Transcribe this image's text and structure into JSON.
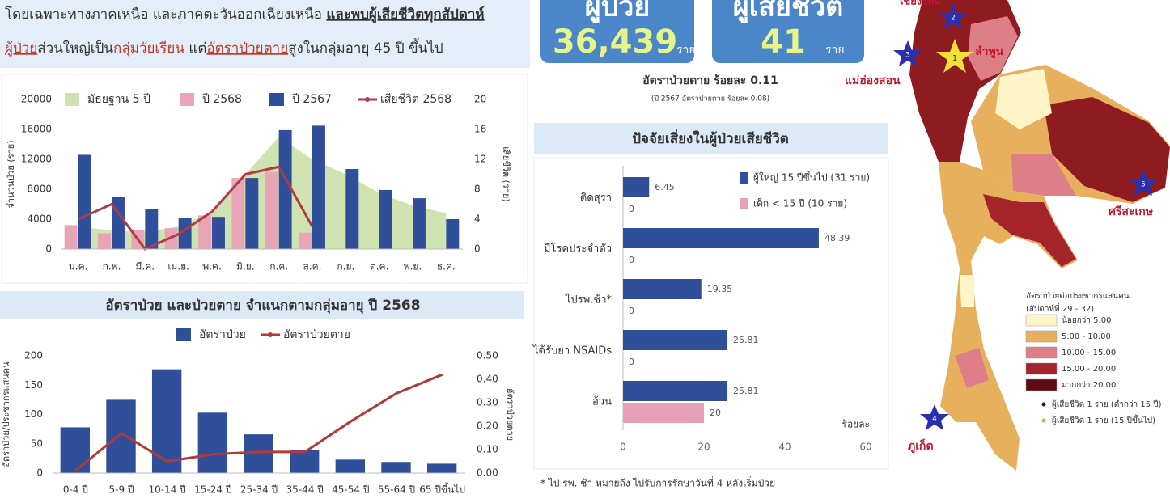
{
  "header": {
    "line1": [
      "โดยเฉพาะทางภาคเหนือ และภาคตะวันออกเฉียงเหนือ ",
      "และพบผู้เสียชีวิตทุกสัปดาห์"
    ],
    "line2": [
      "ผู้ป่วย",
      "ส่วนใหญ่เป็น",
      "กลุ่มวัยเรียน",
      " แต่",
      "อัตราป่วยตาย",
      "สูงในกลุ่มอายุ 45 ปี ขึ้นไป"
    ]
  },
  "stats": {
    "cases_label": "ผู้ป่วย",
    "cases": "36,439",
    "cases_unit": "ราย",
    "deaths_label": "ผู้เสียชีวิต",
    "deaths": "41",
    "deaths_unit": "ราย",
    "cfr": "อัตราป่วยตาย ร้อยละ 0.11",
    "cfr_prev": "(ปี 2567 อัตราป่วยตาย ร้อยละ 0.08)"
  },
  "footnote": "* ไป รพ. ช้า หมายถึง ไปรับการรักษาวันที่ 4 หลังเริ่มป่วย",
  "map": {
    "places": [
      "เชียงใหม่",
      "ลำพูน",
      "แม่ฮ่องสอน",
      "ศรีสะเกษ",
      "ภูเก็ต"
    ],
    "stars": [
      "1",
      "2",
      "3",
      "5",
      "4"
    ],
    "legend": {
      "title": "อัตราป่วยต่อประชากรแสนคน",
      "subtitle": "(สัปดาห์ที่ 29 - 32)",
      "items": [
        {
          "label": "น้อยกว่า 5.00",
          "color": "#fdf5c8"
        },
        {
          "label": "5.00 - 10.00",
          "color": "#e6b05c"
        },
        {
          "label": "10.00 - 15.00",
          "color": "#de7f88"
        },
        {
          "label": "15.00 - 20.00",
          "color": "#a3242b"
        },
        {
          "label": "มากกว่า 20.00",
          "color": "#5e0c12"
        }
      ],
      "markers": [
        {
          "label": "ผู้เสียชีวิต 1 ราย (ต่ำกว่า 15 ปี)",
          "color": "#111111"
        },
        {
          "label": "ผู้เสียชีวิต 1 ราย (15 ปีขึ้นไป)",
          "color": "#8fd14f"
        }
      ]
    }
  },
  "chart_data": [
    {
      "type": "bar",
      "categories": [
        "ม.ค.",
        "ก.พ.",
        "มี.ค.",
        "เม.ย.",
        "พ.ค.",
        "มิ.ย.",
        "ก.ค.",
        "ส.ค.",
        "ก.ย.",
        "ต.ค.",
        "พ.ย.",
        "ธ.ค."
      ],
      "series": [
        {
          "name": "มัธยฐาน 5 ปี",
          "type": "area",
          "color": "#cfe3b0",
          "values": [
            3000,
            2500,
            2300,
            3000,
            5000,
            10000,
            15000,
            12000,
            10000,
            7500,
            5800,
            4800
          ]
        },
        {
          "name": "ปี 2568",
          "type": "bar",
          "color": "#e8a5b5",
          "values": [
            3200,
            2100,
            2600,
            2800,
            4500,
            9500,
            10300,
            2200,
            null,
            null,
            null,
            null
          ]
        },
        {
          "name": "ปี 2567",
          "type": "bar",
          "color": "#2f4f9a",
          "values": [
            12600,
            7000,
            5300,
            4200,
            4300,
            9500,
            15900,
            16500,
            10700,
            7900,
            6800,
            4000
          ]
        },
        {
          "name": "เสียชีวิต 2568",
          "type": "line",
          "axis": "y2",
          "color": "#b03a48",
          "values": [
            4,
            6,
            0,
            2,
            5,
            10,
            11,
            3,
            null,
            null,
            null,
            null
          ]
        }
      ],
      "ylim": [
        0,
        20000
      ],
      "yticks": [
        0,
        4000,
        8000,
        12000,
        16000,
        20000
      ],
      "y2lim": [
        0,
        20
      ],
      "y2ticks": [
        0,
        4,
        8,
        12,
        16,
        20
      ],
      "ylabel": "จำนวนป่วย (ราย)",
      "y2label": "เสียชีวิต (ราย)"
    },
    {
      "type": "bar",
      "title": "อัตราป่วย และป่วยตาย จำแนกตามกลุ่มอายุ ปี 2568",
      "categories": [
        "0-4 ปี",
        "5-9 ปี",
        "10-14 ปี",
        "15-24 ปี",
        "25-34 ปี",
        "35-44 ปี",
        "45-54 ปี",
        "55-64 ปี",
        "65 ปีขึ้นไป"
      ],
      "series": [
        {
          "name": "อัตราป่วย",
          "type": "bar",
          "color": "#2f4f9a",
          "values": [
            78,
            125,
            177,
            103,
            66,
            40,
            23,
            19,
            16
          ]
        },
        {
          "name": "อัตราป่วยตาย",
          "type": "line",
          "axis": "y2",
          "color": "#b03a3a",
          "values": [
            0.01,
            0.17,
            0.05,
            0.08,
            0.09,
            0.09,
            0.22,
            0.34,
            0.42
          ]
        }
      ],
      "ylim": [
        0,
        200
      ],
      "yticks": [
        0,
        50,
        100,
        150,
        200
      ],
      "y2lim": [
        0,
        0.5
      ],
      "y2ticks": [
        {
          "value": 0,
          "label": "0.00"
        },
        {
          "value": 0.1,
          "label": "0.10"
        },
        {
          "value": 0.2,
          "label": "0.20"
        },
        {
          "value": 0.3,
          "label": "0.30"
        },
        {
          "value": 0.4,
          "label": "0.40"
        },
        {
          "value": 0.5,
          "label": "0.50"
        }
      ],
      "ylabel": "อัตราป่วย/ประชากรแสนคน",
      "y2label": "อัตราป่วยตาย"
    },
    {
      "type": "barh",
      "title": "ปัจจัยเสี่ยงในผู้ป่วยเสียชีวิต",
      "categories": [
        "ติดสุรา",
        "มีโรคประจำตัว",
        "ไปรพ.ช้า*",
        "ได้รับยา NSAIDs",
        "อ้วน"
      ],
      "series": [
        {
          "name": "ผู้ใหญ่ 15 ปีขึ้นไป (31 ราย)",
          "color": "#2f4f9a",
          "values": [
            6.45,
            48.39,
            19.35,
            25.81,
            25.81
          ]
        },
        {
          "name": "เด็ก < 15 ปี (10 ราย)",
          "color": "#e8a0b8",
          "values": [
            0,
            0,
            0,
            0,
            20
          ]
        }
      ],
      "xlim": [
        0,
        60
      ],
      "xticks": [
        0,
        20,
        40,
        60
      ],
      "xlabel": "ร้อยละ"
    }
  ]
}
